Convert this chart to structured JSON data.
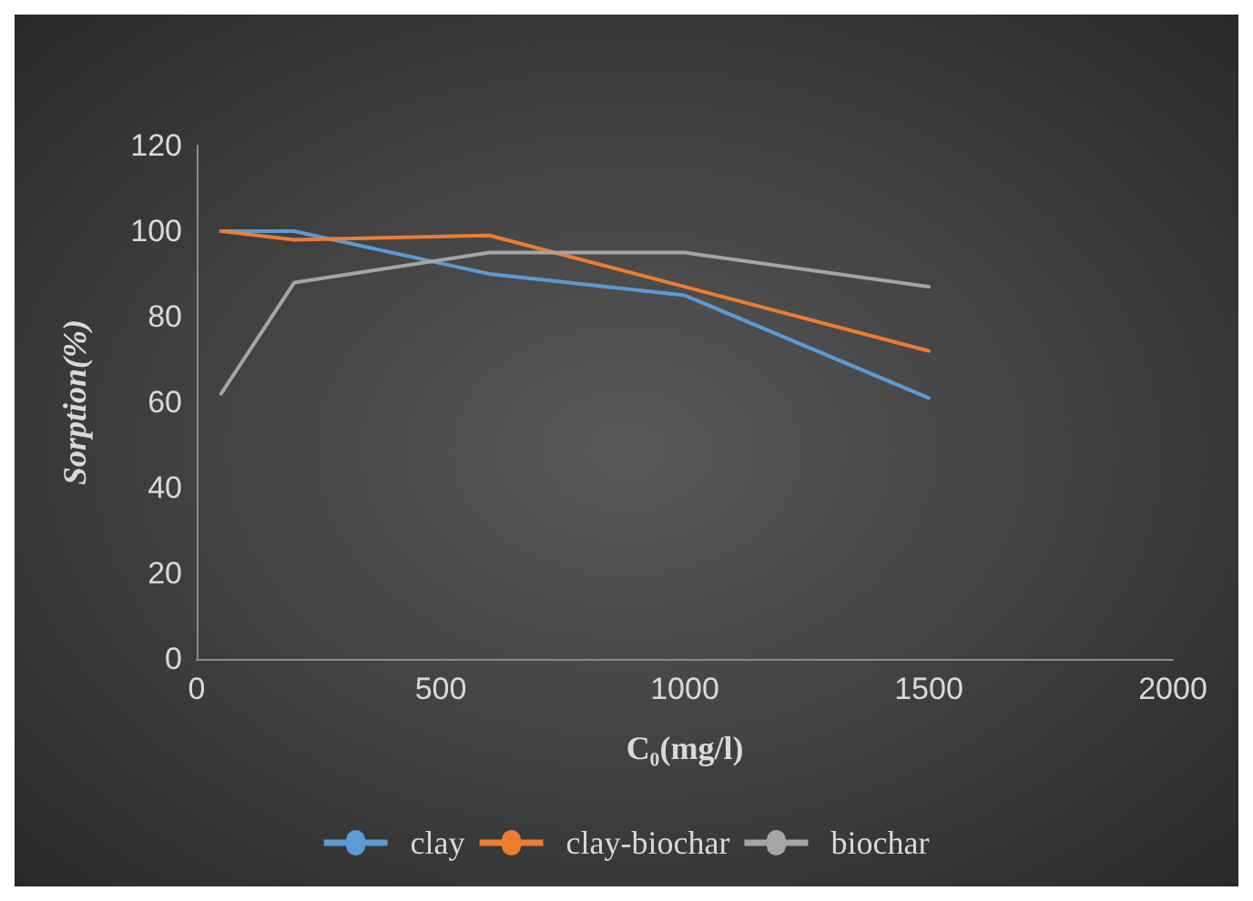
{
  "chart_data": {
    "type": "line",
    "xlabel": "C₀(mg/l)",
    "ylabel": "Sorption(%)",
    "x": [
      50,
      200,
      600,
      1000,
      1500
    ],
    "series": [
      {
        "name": "clay",
        "color": "#5b9bd5",
        "values": [
          100,
          100,
          90,
          85,
          61
        ]
      },
      {
        "name": "clay-biochar",
        "color": "#ed7d31",
        "values": [
          100,
          98,
          99,
          87,
          72
        ]
      },
      {
        "name": "biochar",
        "color": "#a5a5a5",
        "values": [
          62,
          88,
          95,
          95,
          87
        ]
      }
    ],
    "xlim": [
      0,
      2000
    ],
    "xticks": [
      0,
      500,
      1000,
      1500,
      2000
    ],
    "ylim": [
      0,
      120
    ],
    "yticks": [
      0,
      20,
      40,
      60,
      80,
      100,
      120
    ],
    "grid": false,
    "legend": "bottom",
    "marker": "none",
    "line_style": "solid"
  }
}
